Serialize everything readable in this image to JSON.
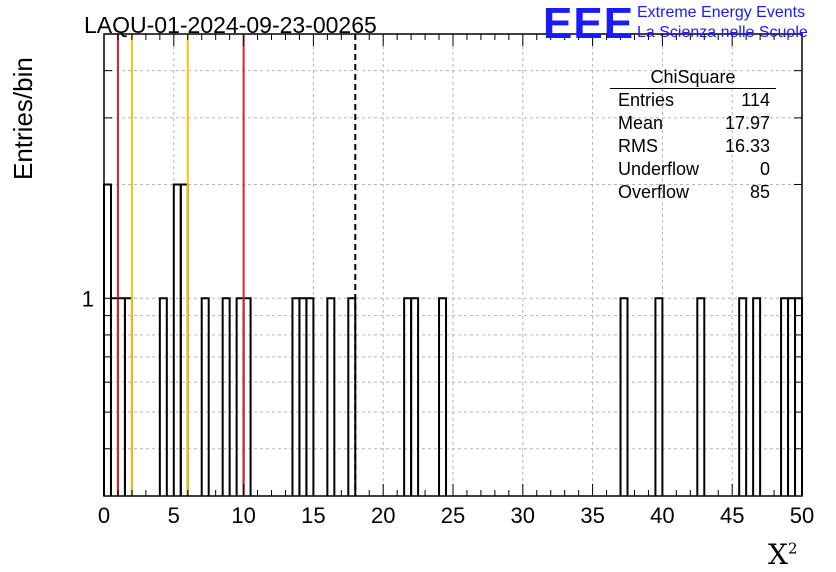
{
  "header": {
    "run_title": "LAQU-01-2024-09-23-00265",
    "logo_text": "EEE",
    "logo_line1": "Extreme Energy Events",
    "logo_line2": "La Scienza nelle Scuole"
  },
  "stats_box": {
    "title": "ChiSquare",
    "rows": [
      {
        "label": "Entries",
        "value": "114"
      },
      {
        "label": "Mean",
        "value": "17.97"
      },
      {
        "label": "RMS",
        "value": "16.33"
      },
      {
        "label": "Underflow",
        "value": "0"
      },
      {
        "label": "Overflow",
        "value": "85"
      }
    ]
  },
  "chart_data": {
    "type": "bar",
    "xlabel": "X",
    "xlabel_sup": "2",
    "ylabel": "Entries/bin",
    "xlim": [
      0,
      50
    ],
    "ylog": true,
    "ylim": [
      0.3,
      5
    ],
    "bin_width": 0.5,
    "x_ticks": [
      "0",
      "5",
      "10",
      "15",
      "20",
      "25",
      "30",
      "35",
      "40",
      "45",
      "50"
    ],
    "y_tick_labels": [
      {
        "value": 1,
        "label": "1"
      }
    ],
    "grid": true,
    "bins": [
      {
        "x": 0.0,
        "y": 2
      },
      {
        "x": 0.5,
        "y": 1
      },
      {
        "x": 1.0,
        "y": 1
      },
      {
        "x": 1.5,
        "y": 1
      },
      {
        "x": 4.0,
        "y": 1
      },
      {
        "x": 5.0,
        "y": 2
      },
      {
        "x": 5.5,
        "y": 2
      },
      {
        "x": 7.0,
        "y": 1
      },
      {
        "x": 8.5,
        "y": 1
      },
      {
        "x": 9.5,
        "y": 1
      },
      {
        "x": 10.0,
        "y": 1
      },
      {
        "x": 13.5,
        "y": 1
      },
      {
        "x": 14.0,
        "y": 1
      },
      {
        "x": 14.5,
        "y": 1
      },
      {
        "x": 16.0,
        "y": 1
      },
      {
        "x": 17.5,
        "y": 1
      },
      {
        "x": 21.5,
        "y": 1
      },
      {
        "x": 22.0,
        "y": 1
      },
      {
        "x": 24.0,
        "y": 1
      },
      {
        "x": 37.0,
        "y": 1
      },
      {
        "x": 39.5,
        "y": 1
      },
      {
        "x": 42.5,
        "y": 1
      },
      {
        "x": 45.5,
        "y": 1
      },
      {
        "x": 46.5,
        "y": 1
      },
      {
        "x": 48.5,
        "y": 1
      },
      {
        "x": 49.0,
        "y": 1
      },
      {
        "x": 49.5,
        "y": 1
      }
    ],
    "reference_lines": [
      {
        "x": 1,
        "color": "#d62728",
        "style": "solid"
      },
      {
        "x": 2,
        "color": "#f2c40f",
        "style": "solid"
      },
      {
        "x": 6,
        "color": "#f2c40f",
        "style": "solid"
      },
      {
        "x": 10,
        "color": "#d62728",
        "style": "solid"
      },
      {
        "x": 18,
        "color": "#000000",
        "style": "dashed"
      }
    ]
  }
}
